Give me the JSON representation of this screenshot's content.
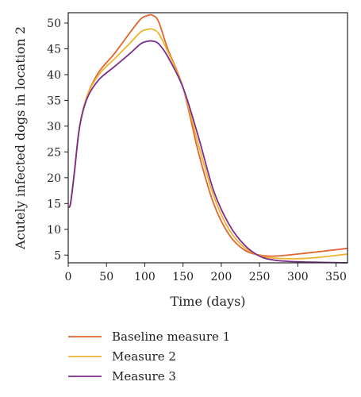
{
  "chart_data": {
    "type": "line",
    "title": "",
    "xlabel": "Time (days)",
    "ylabel": "Acutely infected dogs in location 2",
    "xlim": [
      0,
      365
    ],
    "ylim": [
      3.5,
      52
    ],
    "xticks": [
      0,
      50,
      100,
      150,
      200,
      250,
      300,
      350
    ],
    "yticks": [
      5,
      10,
      15,
      20,
      25,
      30,
      35,
      40,
      45,
      50
    ],
    "grid": false,
    "legend_position": "bottom-left, below plot",
    "series": [
      {
        "name": "Baseline measure 1",
        "color": "#e0652e",
        "x": [
          0,
          3,
          8,
          15,
          25,
          40,
          60,
          80,
          95,
          105,
          110,
          118,
          130,
          150,
          170,
          190,
          210,
          230,
          250,
          270,
          300,
          330,
          365
        ],
        "y": [
          14.3,
          15,
          21,
          30,
          36,
          40.5,
          44,
          48,
          50.8,
          51.5,
          51.5,
          50.3,
          45,
          37.5,
          25,
          15,
          9,
          6,
          5,
          4.8,
          5.2,
          5.7,
          6.3
        ]
      },
      {
        "name": "Measure 2",
        "color": "#f0b330",
        "x": [
          0,
          3,
          8,
          15,
          25,
          40,
          60,
          80,
          95,
          105,
          110,
          118,
          130,
          150,
          170,
          190,
          210,
          230,
          250,
          270,
          300,
          330,
          365
        ],
        "y": [
          14.3,
          15,
          21,
          30,
          36,
          40,
          43,
          46,
          48.3,
          48.8,
          48.8,
          48,
          44.5,
          37.5,
          26.5,
          16.5,
          10,
          6.5,
          4.9,
          4.4,
          4.3,
          4.6,
          5.2
        ]
      },
      {
        "name": "Measure 3",
        "color": "#7b2d8e",
        "x": [
          0,
          3,
          8,
          15,
          25,
          40,
          60,
          80,
          95,
          105,
          110,
          118,
          130,
          150,
          170,
          190,
          210,
          230,
          250,
          270,
          300,
          330,
          365
        ],
        "y": [
          14.3,
          15,
          21,
          30,
          35.5,
          39,
          41.5,
          44,
          46,
          46.5,
          46.5,
          46,
          43.5,
          37.5,
          28,
          17.5,
          11,
          7,
          4.8,
          4,
          3.7,
          3.6,
          3.5
        ]
      }
    ]
  }
}
